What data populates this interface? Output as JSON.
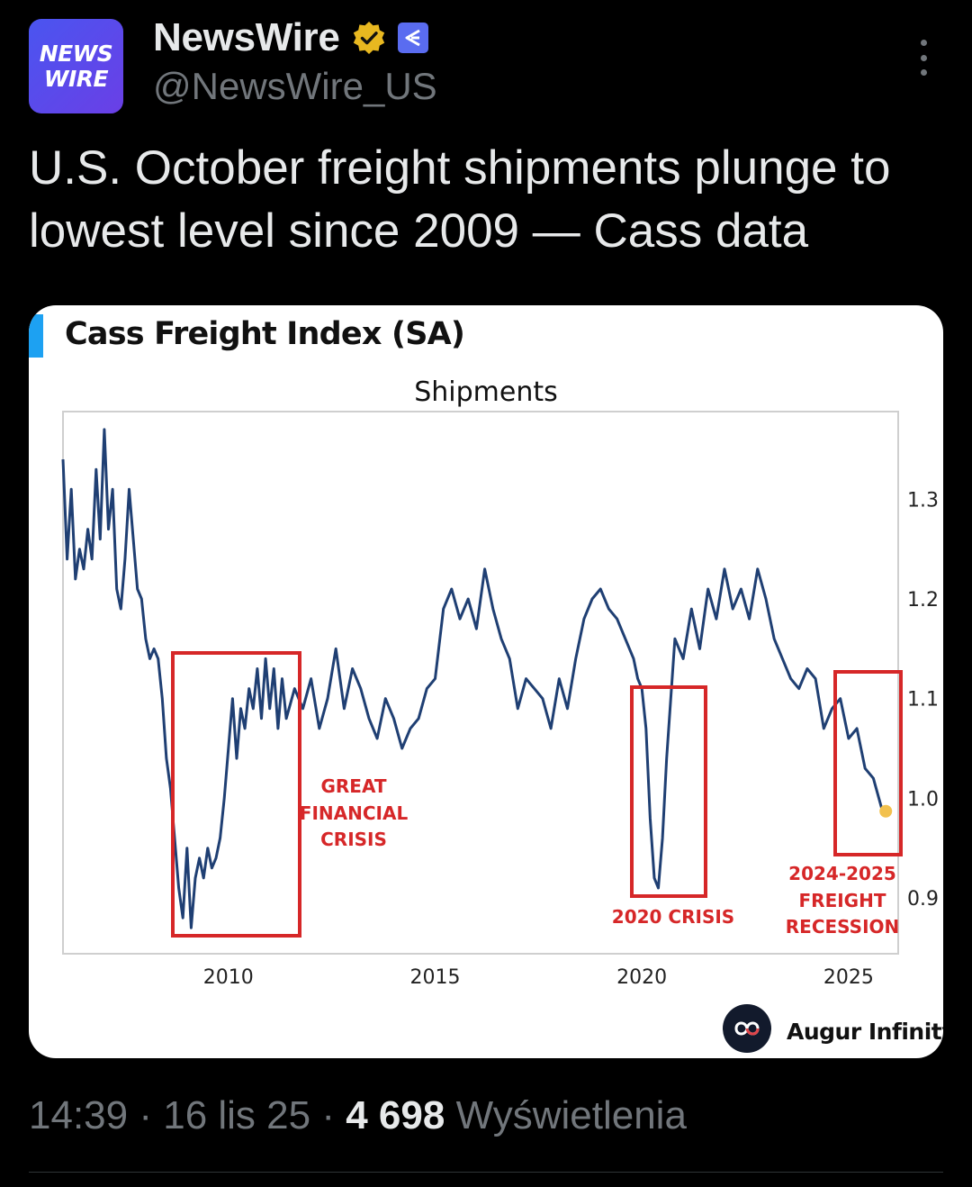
{
  "account": {
    "avatar_line1": "NEWS",
    "avatar_line2": "WIRE",
    "name": "NewsWire",
    "handle": "@NewsWire_US"
  },
  "tweet": {
    "text": "U.S. October freight shipments plunge to lowest level since 2009 — Cass data"
  },
  "card": {
    "title": "Cass Freight Index (SA)",
    "brand": "Augur Infinity"
  },
  "chart_data": {
    "type": "line",
    "title": "Shipments",
    "xlabel": "",
    "ylabel": "",
    "xlim": [
      2006.0,
      2026.2
    ],
    "ylim": [
      0.844,
      1.388
    ],
    "x_ticks": [
      "2010",
      "2015",
      "2020",
      "2025"
    ],
    "y_ticks": [
      "1.3",
      "1.2",
      "1.1",
      "1.0",
      "0.9"
    ],
    "grid": false,
    "series": [
      {
        "color": "#1f3f73",
        "x": [
          2006.0,
          2006.1,
          2006.2,
          2006.3,
          2006.4,
          2006.5,
          2006.6,
          2006.7,
          2006.8,
          2006.9,
          2007.0,
          2007.1,
          2007.2,
          2007.3,
          2007.4,
          2007.5,
          2007.6,
          2007.7,
          2007.8,
          2007.9,
          2008.0,
          2008.1,
          2008.2,
          2008.3,
          2008.4,
          2008.5,
          2008.6,
          2008.7,
          2008.8,
          2008.9,
          2009.0,
          2009.1,
          2009.2,
          2009.3,
          2009.4,
          2009.5,
          2009.6,
          2009.7,
          2009.8,
          2009.9,
          2010.0,
          2010.1,
          2010.2,
          2010.3,
          2010.4,
          2010.5,
          2010.6,
          2010.7,
          2010.8,
          2010.9,
          2011.0,
          2011.1,
          2011.2,
          2011.3,
          2011.4,
          2011.6,
          2011.8,
          2012.0,
          2012.2,
          2012.4,
          2012.6,
          2012.8,
          2013.0,
          2013.2,
          2013.4,
          2013.6,
          2013.8,
          2014.0,
          2014.2,
          2014.4,
          2014.6,
          2014.8,
          2015.0,
          2015.2,
          2015.4,
          2015.6,
          2015.8,
          2016.0,
          2016.2,
          2016.4,
          2016.6,
          2016.8,
          2017.0,
          2017.2,
          2017.4,
          2017.6,
          2017.8,
          2018.0,
          2018.2,
          2018.4,
          2018.6,
          2018.8,
          2019.0,
          2019.2,
          2019.4,
          2019.6,
          2019.8,
          2019.9,
          2020.0,
          2020.1,
          2020.2,
          2020.3,
          2020.4,
          2020.5,
          2020.6,
          2020.7,
          2020.8,
          2021.0,
          2021.2,
          2021.4,
          2021.6,
          2021.8,
          2022.0,
          2022.2,
          2022.4,
          2022.6,
          2022.8,
          2023.0,
          2023.2,
          2023.4,
          2023.6,
          2023.8,
          2024.0,
          2024.2,
          2024.4,
          2024.6,
          2024.8,
          2025.0,
          2025.2,
          2025.4,
          2025.6,
          2025.8
        ],
        "y": [
          1.34,
          1.24,
          1.31,
          1.22,
          1.25,
          1.23,
          1.27,
          1.24,
          1.33,
          1.26,
          1.37,
          1.27,
          1.31,
          1.21,
          1.19,
          1.24,
          1.31,
          1.26,
          1.21,
          1.2,
          1.16,
          1.14,
          1.15,
          1.14,
          1.1,
          1.04,
          1.01,
          0.96,
          0.91,
          0.88,
          0.95,
          0.87,
          0.92,
          0.94,
          0.92,
          0.95,
          0.93,
          0.94,
          0.96,
          1.0,
          1.05,
          1.1,
          1.04,
          1.09,
          1.07,
          1.11,
          1.09,
          1.13,
          1.08,
          1.14,
          1.09,
          1.13,
          1.07,
          1.12,
          1.08,
          1.11,
          1.09,
          1.12,
          1.07,
          1.1,
          1.15,
          1.09,
          1.13,
          1.11,
          1.08,
          1.06,
          1.1,
          1.08,
          1.05,
          1.07,
          1.08,
          1.11,
          1.12,
          1.19,
          1.21,
          1.18,
          1.2,
          1.17,
          1.23,
          1.19,
          1.16,
          1.14,
          1.09,
          1.12,
          1.11,
          1.1,
          1.07,
          1.12,
          1.09,
          1.14,
          1.18,
          1.2,
          1.21,
          1.19,
          1.18,
          1.16,
          1.14,
          1.12,
          1.11,
          1.07,
          0.98,
          0.92,
          0.91,
          0.96,
          1.04,
          1.1,
          1.16,
          1.14,
          1.19,
          1.15,
          1.21,
          1.18,
          1.23,
          1.19,
          1.21,
          1.18,
          1.23,
          1.2,
          1.16,
          1.14,
          1.12,
          1.11,
          1.13,
          1.12,
          1.07,
          1.09,
          1.1,
          1.06,
          1.07,
          1.03,
          1.02,
          0.99
        ]
      }
    ],
    "marker": {
      "x": 2025.9,
      "y": 0.987,
      "color": "#f2c14e"
    },
    "annotations": [
      {
        "lines": [
          "GREAT",
          "FINANCIAL",
          "CRISIS"
        ],
        "color": "#d62728"
      },
      {
        "lines": [
          "2020 CRISIS"
        ],
        "color": "#d62728"
      },
      {
        "lines": [
          "2024-2025",
          "FREIGHT",
          "RECESSION"
        ],
        "color": "#d62728"
      }
    ]
  },
  "footer": {
    "time": "14:39",
    "date": "16 lis 25",
    "views_count": "4 698",
    "views_label": "Wyświetlenia",
    "sep": " · "
  },
  "icons": {
    "verified": "verified-badge-icon",
    "affiliate": "affiliate-badge-icon",
    "more": "more-options-icon",
    "brand_logo": "augur-infinity-logo-icon"
  },
  "colors": {
    "background": "#000000",
    "text_primary": "#e7e9ea",
    "text_secondary": "#71767b",
    "verified_gold": "#e8b820",
    "line": "#1f3f73",
    "annotation_red": "#d62728"
  }
}
